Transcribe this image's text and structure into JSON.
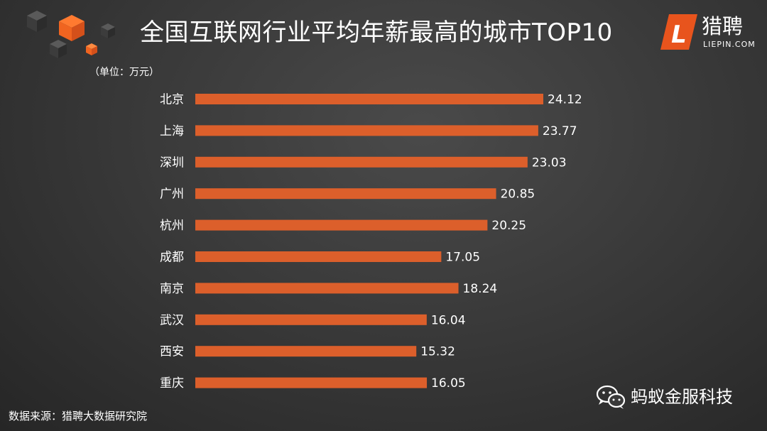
{
  "header": {
    "title": "全国互联网行业平均年薪最高的城市TOP10",
    "unit": "（单位：万元）"
  },
  "logo": {
    "letter": "L",
    "name_cn": "猎聘",
    "name_en": "LIEPIN.COM"
  },
  "footer": {
    "source": "数据来源：猎聘大数据研究院",
    "watermark": "蚂蚁金服科技"
  },
  "colors": {
    "bar": "#dc5f2b",
    "logo": "#e8541d",
    "text": "#ffffff"
  },
  "icons": {
    "decor": "cubes-icon",
    "logo": "liepin-logo-icon",
    "watermark": "wechat-icon"
  },
  "chart_data": {
    "type": "bar",
    "orientation": "horizontal",
    "categories": [
      "北京",
      "上海",
      "深圳",
      "广州",
      "杭州",
      "成都",
      "南京",
      "武汉",
      "西安",
      "重庆"
    ],
    "values": [
      24.12,
      23.77,
      23.03,
      20.85,
      20.25,
      17.05,
      18.24,
      16.04,
      15.32,
      16.05
    ],
    "value_labels": [
      "24.12",
      "23.77",
      "23.03",
      "20.85",
      "20.25",
      "17.05",
      "18.24",
      "16.04",
      "15.32",
      "16.05"
    ],
    "title": "全国互联网行业平均年薪最高的城市TOP10",
    "xlabel": "",
    "ylabel": "",
    "xlim": [
      0,
      24.12
    ],
    "grid": false,
    "legend": "none"
  }
}
